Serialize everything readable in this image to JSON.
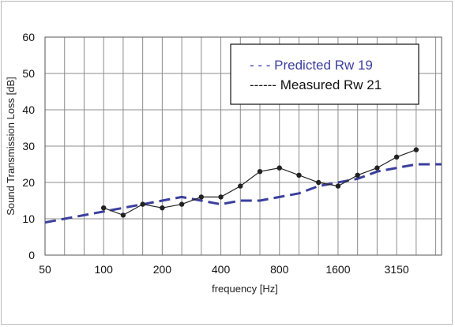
{
  "chart_data": {
    "type": "line",
    "xlabel": "frequency [Hz]",
    "ylabel": "Sound Transmission Loss [dB]",
    "ylim": [
      0,
      60
    ],
    "yticks": [
      "0",
      "10",
      "20",
      "30",
      "40",
      "50",
      "60"
    ],
    "x_scale": "log (one-third octave bands)",
    "x_tick_labels": [
      "50",
      "100",
      "200",
      "400",
      "800",
      "1600",
      "3150"
    ],
    "x_bands": [
      50,
      63,
      80,
      100,
      125,
      160,
      200,
      250,
      315,
      400,
      500,
      630,
      800,
      1000,
      1250,
      1600,
      2000,
      2500,
      3150,
      4000,
      5000
    ],
    "grid": true,
    "legend_position": "top-right",
    "series": [
      {
        "name": "Predicted Rw 19",
        "style": "dashed",
        "color": "#3a3f9e",
        "x": [
          50,
          63,
          80,
          100,
          125,
          160,
          200,
          250,
          315,
          400,
          500,
          630,
          800,
          1000,
          1250,
          1600,
          2000,
          2500,
          3150,
          4000,
          5000
        ],
        "values": [
          9,
          10,
          11,
          12,
          13,
          14,
          15,
          16,
          15,
          14,
          15,
          15,
          16,
          17,
          19,
          20,
          21,
          23,
          24,
          25,
          25
        ]
      },
      {
        "name": "Measured Rw 21",
        "style": "solid with markers",
        "color": "#222222",
        "x": [
          100,
          125,
          160,
          200,
          250,
          315,
          400,
          500,
          630,
          800,
          1000,
          1250,
          1600,
          2000,
          2500,
          3150,
          4000
        ],
        "values": [
          13,
          11,
          14,
          13,
          14,
          16,
          16,
          19,
          23,
          24,
          22,
          20,
          19,
          22,
          24,
          27,
          29
        ]
      }
    ]
  },
  "legend": {
    "predicted_label": "- - - Predicted Rw 19",
    "measured_label": "------ Measured Rw 21"
  }
}
